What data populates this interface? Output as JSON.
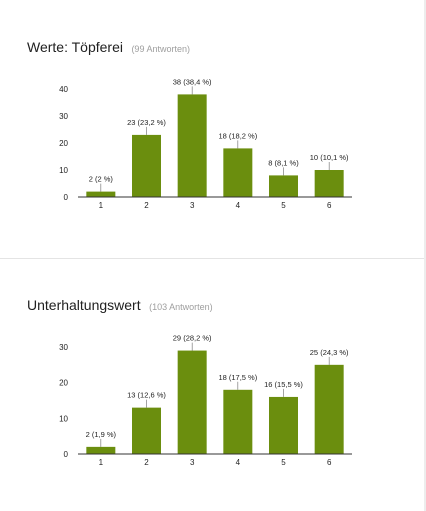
{
  "colors": {
    "bar": "#6b8e0e",
    "axis": "#333333",
    "leader": "#666666"
  },
  "sections": [
    {
      "title": "Werte: Töpferei",
      "responses": "(99 Antworten)"
    },
    {
      "title": "Unterhaltungswert",
      "responses": "(103 Antworten)"
    }
  ],
  "chart_data": [
    {
      "type": "bar",
      "categories": [
        "1",
        "2",
        "3",
        "4",
        "5",
        "6"
      ],
      "values": [
        2,
        23,
        38,
        18,
        8,
        10
      ],
      "data_labels": [
        "2 (2 %)",
        "23 (23,2 %)",
        "38 (38,4 %)",
        "18 (18,2 %)",
        "8 (8,1 %)",
        "10 (10,1 %)"
      ],
      "yticks": [
        0,
        10,
        20,
        30,
        40
      ],
      "ylim": [
        0,
        40
      ]
    },
    {
      "type": "bar",
      "categories": [
        "1",
        "2",
        "3",
        "4",
        "5",
        "6"
      ],
      "values": [
        2,
        13,
        29,
        18,
        16,
        25
      ],
      "data_labels": [
        "2 (1,9 %)",
        "13 (12,6 %)",
        "29 (28,2 %)",
        "18 (17,5 %)",
        "16 (15,5 %)",
        "25 (24,3 %)"
      ],
      "yticks": [
        0,
        10,
        20,
        30
      ],
      "ylim": [
        0,
        30
      ]
    }
  ]
}
